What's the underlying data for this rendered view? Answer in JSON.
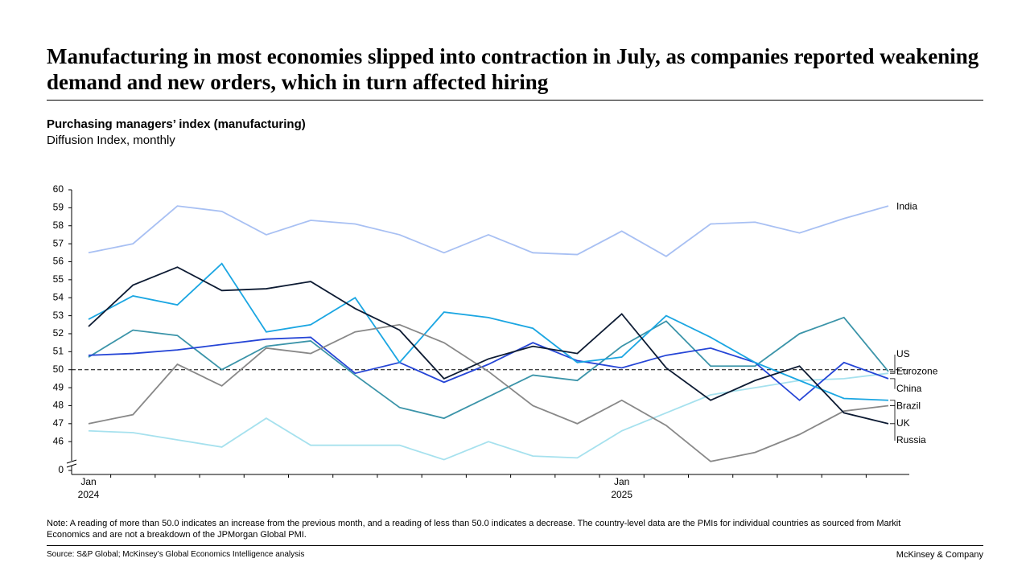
{
  "title": "Manufacturing in most economies slipped into contraction in July, as companies reported weakening demand and new orders, which in turn affected hiring",
  "chart_data": {
    "type": "line",
    "title": "Purchasing managers’ index (manufacturing)",
    "subtitle": "Diffusion Index, monthly",
    "categories": [
      "Jan 2024",
      null,
      null,
      null,
      null,
      null,
      null,
      null,
      null,
      null,
      null,
      null,
      "Jan 2025",
      null,
      null,
      null,
      null,
      null,
      null
    ],
    "series": [
      {
        "name": "India",
        "color": "#a8c0f3",
        "values": [
          56.5,
          57.0,
          59.1,
          58.8,
          57.5,
          58.3,
          58.1,
          57.5,
          56.5,
          57.5,
          56.5,
          56.4,
          57.7,
          56.3,
          58.1,
          58.2,
          57.6,
          58.4,
          59.1
        ]
      },
      {
        "name": "US",
        "color": "#3b94a9",
        "values": [
          50.7,
          52.2,
          51.9,
          50.0,
          51.3,
          51.6,
          49.7,
          47.9,
          47.3,
          48.5,
          49.7,
          49.4,
          51.3,
          52.7,
          50.2,
          50.2,
          52.0,
          52.9,
          49.9
        ]
      },
      {
        "name": "Eurozone",
        "color": "#a6e1ee",
        "values": [
          46.6,
          46.5,
          46.1,
          45.7,
          47.3,
          45.8,
          45.8,
          45.8,
          45.0,
          46.0,
          45.2,
          45.1,
          46.6,
          47.6,
          48.6,
          49.0,
          49.4,
          49.5,
          49.8
        ]
      },
      {
        "name": "China",
        "color": "#2545d6",
        "values": [
          50.8,
          50.9,
          51.1,
          51.4,
          51.7,
          51.8,
          49.8,
          50.4,
          49.3,
          50.3,
          51.5,
          50.5,
          50.1,
          50.8,
          51.2,
          50.4,
          48.3,
          50.4,
          49.5
        ]
      },
      {
        "name": "Brazil",
        "color": "#1ba6e2",
        "values": [
          52.8,
          54.1,
          53.6,
          55.9,
          52.1,
          52.5,
          54.0,
          50.4,
          53.2,
          52.9,
          52.3,
          50.4,
          50.7,
          53.0,
          51.8,
          50.4,
          49.4,
          48.4,
          48.3
        ]
      },
      {
        "name": "UK",
        "color": "#888888",
        "values": [
          47.0,
          47.5,
          50.3,
          49.1,
          51.2,
          50.9,
          52.1,
          52.5,
          51.5,
          49.9,
          48.0,
          47.0,
          48.3,
          46.9,
          44.9,
          45.4,
          46.4,
          47.7,
          48.0
        ]
      },
      {
        "name": "Russia",
        "color": "#0d1b33",
        "values": [
          52.4,
          54.7,
          55.7,
          54.4,
          54.5,
          54.9,
          53.4,
          52.2,
          49.5,
          50.6,
          51.3,
          50.9,
          53.1,
          50.1,
          48.3,
          49.4,
          50.2,
          47.6,
          47.0
        ]
      }
    ],
    "ylim": [
      44.4,
      60
    ],
    "yticks": [
      0,
      46,
      47,
      48,
      49,
      50,
      51,
      52,
      53,
      54,
      55,
      56,
      57,
      58,
      59,
      60
    ],
    "axis_break": true,
    "reference_line": 50,
    "note": "Note: A reading of more than 50.0 indicates an increase from the previous month, and a reading of less than 50.0 indicates a decrease. The country-level data are the PMIs for individual countries as sourced from Markit Economics and are not a breakdown of the JPMorgan Global PMI.",
    "source": "Source: S&P Global; McKinsey’s Global Economics Intelligence analysis"
  },
  "brand": "McKinsey & Company"
}
